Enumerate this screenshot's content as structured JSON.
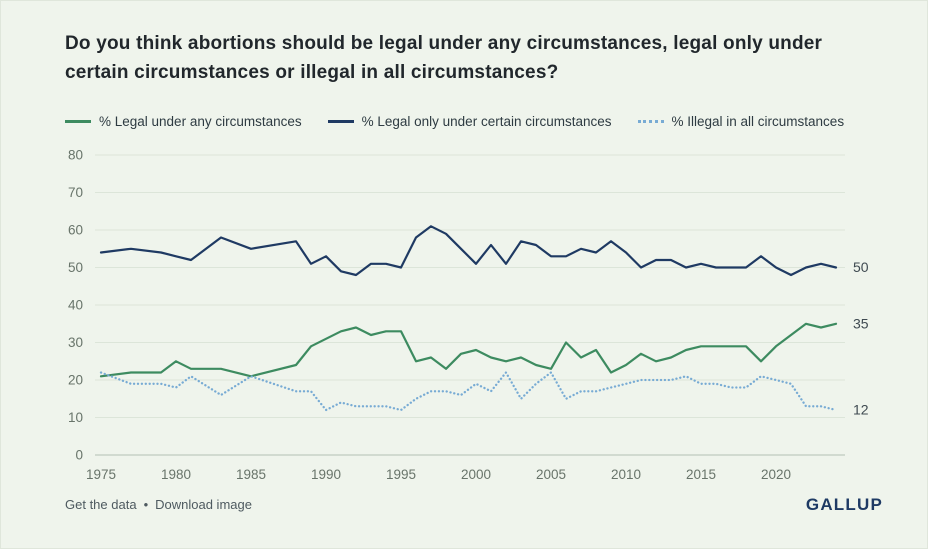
{
  "title": "Do you think abortions should be legal under any circumstances, legal only under certain circumstances or illegal in all circumstances?",
  "chart_data": {
    "type": "line",
    "x": [
      1975,
      1977,
      1979,
      1980,
      1981,
      1983,
      1985,
      1988,
      1989,
      1990,
      1991,
      1992,
      1993,
      1994,
      1995,
      1996,
      1997,
      1998,
      1999,
      2000,
      2001,
      2002,
      2003,
      2004,
      2005,
      2006,
      2007,
      2008,
      2009,
      2010,
      2011,
      2012,
      2013,
      2014,
      2015,
      2016,
      2017,
      2018,
      2019,
      2020,
      2021,
      2022,
      2023,
      2024
    ],
    "xlim": [
      1974.6,
      2024.6
    ],
    "ylim": [
      0,
      80
    ],
    "xticks": [
      1975,
      1980,
      1985,
      1990,
      1995,
      2000,
      2005,
      2010,
      2015,
      2020
    ],
    "yticks": [
      0,
      10,
      20,
      30,
      40,
      50,
      60,
      70,
      80
    ],
    "grid": true,
    "legend_position": "top",
    "series": [
      {
        "name": "legal-any-circumstances",
        "label": "% Legal under any circumstances",
        "color": "#3d8b60",
        "line_style": "solid",
        "end_label": 35,
        "values": [
          21,
          22,
          22,
          25,
          23,
          23,
          21,
          24,
          29,
          31,
          33,
          34,
          32,
          33,
          33,
          25,
          26,
          23,
          27,
          28,
          26,
          25,
          26,
          24,
          23,
          30,
          26,
          28,
          22,
          24,
          27,
          25,
          26,
          28,
          29,
          29,
          29,
          29,
          25,
          29,
          32,
          35,
          34,
          35
        ]
      },
      {
        "name": "legal-certain-circumstances",
        "label": "% Legal only under certain circumstances",
        "color": "#1f3a63",
        "line_style": "solid",
        "end_label": 50,
        "values": [
          54,
          55,
          54,
          53,
          52,
          58,
          55,
          57,
          51,
          53,
          49,
          48,
          51,
          51,
          50,
          58,
          61,
          59,
          55,
          51,
          56,
          51,
          57,
          56,
          53,
          53,
          55,
          54,
          57,
          54,
          50,
          52,
          52,
          50,
          51,
          50,
          50,
          50,
          53,
          50,
          48,
          50,
          51,
          50
        ]
      },
      {
        "name": "illegal-all-circumstances",
        "label": "% Illegal in all circumstances",
        "color": "#78abd4",
        "line_style": "dotted",
        "end_label": 12,
        "values": [
          22,
          19,
          19,
          18,
          21,
          16,
          21,
          17,
          17,
          12,
          14,
          13,
          13,
          13,
          12,
          15,
          17,
          17,
          16,
          19,
          17,
          22,
          15,
          19,
          22,
          15,
          17,
          17,
          18,
          19,
          20,
          20,
          20,
          21,
          19,
          19,
          18,
          18,
          21,
          20,
          19,
          13,
          13,
          12
        ]
      }
    ],
    "colors": {
      "background": "#eff4ec",
      "gridline": "#dce5d9",
      "axis_line": "#b3bfb3",
      "tick_text": "#68746a",
      "end_label_text": "#3f4a51"
    }
  },
  "footer": {
    "get_data_label": "Get the data",
    "separator": "•",
    "download_label": "Download image",
    "brand": "GALLUP"
  }
}
